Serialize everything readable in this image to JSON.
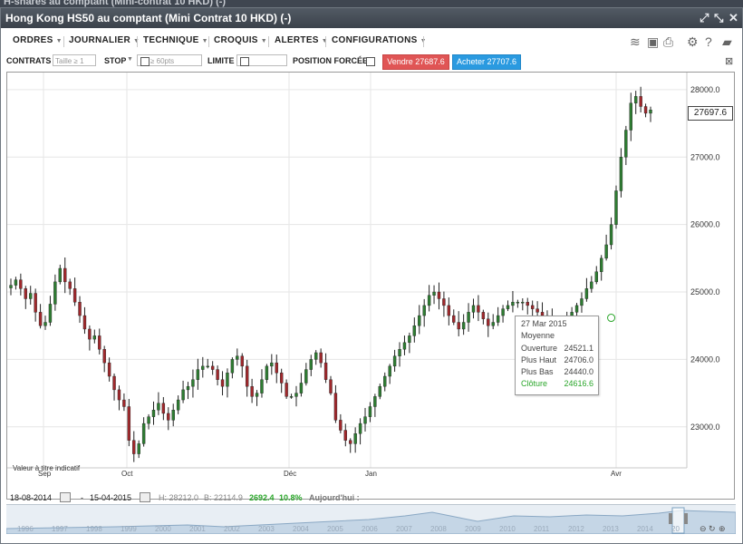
{
  "background_title": "H-shares au comptant (Mini-contrat 10 HKD) (-)",
  "window": {
    "title": "Hong Kong HS50 au comptant (Mini Contrat 10 HKD) (-)"
  },
  "menu": {
    "items": [
      "ORDRES",
      "JOURNALIER",
      "TECHNIQUE",
      "CROQUIS",
      "ALERTES",
      "CONFIGURATIONS"
    ]
  },
  "order": {
    "contracts_label": "CONTRATS",
    "size_placeholder": "Taille ≥ 1",
    "stop_label": "STOP",
    "stop_placeholder": "≥ 60pts",
    "limit_label": "LIMITE",
    "forced_label": "POSITION FORCÉE",
    "sell_label": "Vendre 27687.6",
    "buy_label": "Acheter 27707.6"
  },
  "chart": {
    "current_price": "27697.6",
    "indicative_note": "Valeur à titre indicatif",
    "y_ticks": [
      "28000.0",
      "27000.0",
      "26000.0",
      "25000.0",
      "24000.0",
      "23000.0"
    ],
    "x_ticks": [
      "Sep",
      "Oct",
      "Déc",
      "Jan",
      "Avr"
    ],
    "tooltip": {
      "date": "27 Mar 2015",
      "subtitle": "Moyenne",
      "rows": [
        {
          "label": "Ouverture",
          "value": "24521.1"
        },
        {
          "label": "Plus Haut",
          "value": "24706.0"
        },
        {
          "label": "Plus Bas",
          "value": "24440.0"
        },
        {
          "label": "Clôture",
          "value": "24616.6"
        }
      ]
    }
  },
  "chart_data": {
    "type": "candlestick",
    "ylim": [
      22500,
      28200
    ],
    "x_ticks": [
      "Sep",
      "Oct",
      "Déc",
      "Jan",
      "Avr"
    ],
    "grid": true,
    "colors": {
      "up": "#2e7d32",
      "down": "#a0282c"
    },
    "closes": [
      25100,
      25180,
      25050,
      24900,
      24980,
      24700,
      24500,
      24550,
      24820,
      25150,
      25350,
      25150,
      25050,
      24850,
      24650,
      24450,
      24300,
      24350,
      24150,
      23950,
      23750,
      23550,
      23400,
      23300,
      22800,
      22600,
      22750,
      23050,
      23150,
      23250,
      23350,
      23200,
      23100,
      23250,
      23400,
      23550,
      23600,
      23700,
      23850,
      23900,
      23900,
      23850,
      23700,
      23600,
      23800,
      24000,
      24050,
      23900,
      23600,
      23450,
      23500,
      23700,
      23900,
      23950,
      23800,
      23650,
      23450,
      23450,
      23500,
      23650,
      23850,
      24000,
      24100,
      23950,
      23700,
      23500,
      23100,
      22950,
      22800,
      22750,
      22900,
      23050,
      23150,
      23300,
      23450,
      23600,
      23750,
      23900,
      24050,
      24150,
      24250,
      24350,
      24500,
      24650,
      24800,
      24950,
      25000,
      24900,
      24800,
      24650,
      24550,
      24450,
      24550,
      24700,
      24800,
      24700,
      24600,
      24500,
      24550,
      24650,
      24750,
      24800,
      24850,
      24850,
      24850,
      24800,
      24750,
      24700,
      24650,
      24600,
      24500,
      24450,
      24550,
      24620,
      24700,
      24800,
      24900,
      25050,
      25150,
      25300,
      25500,
      25700,
      26000,
      26500,
      27000,
      27400,
      27800,
      27900,
      27750,
      27650,
      27700
    ],
    "current_price": 27697.6
  },
  "info": {
    "start_date": "18-08-2014",
    "end_date": "15-04-2015",
    "high": "H: 28212.0",
    "low": "B: 22114.9",
    "change": "2692.4",
    "change_pct": "10.8%",
    "today": "Aujourd'hui :"
  },
  "navigator": {
    "years": [
      "1996",
      "1997",
      "1998",
      "1999",
      "2000",
      "2001",
      "2002",
      "2003",
      "2004",
      "2005",
      "2006",
      "2007",
      "2008",
      "2009",
      "2010",
      "2011",
      "2012",
      "2013",
      "2014",
      "20"
    ]
  }
}
